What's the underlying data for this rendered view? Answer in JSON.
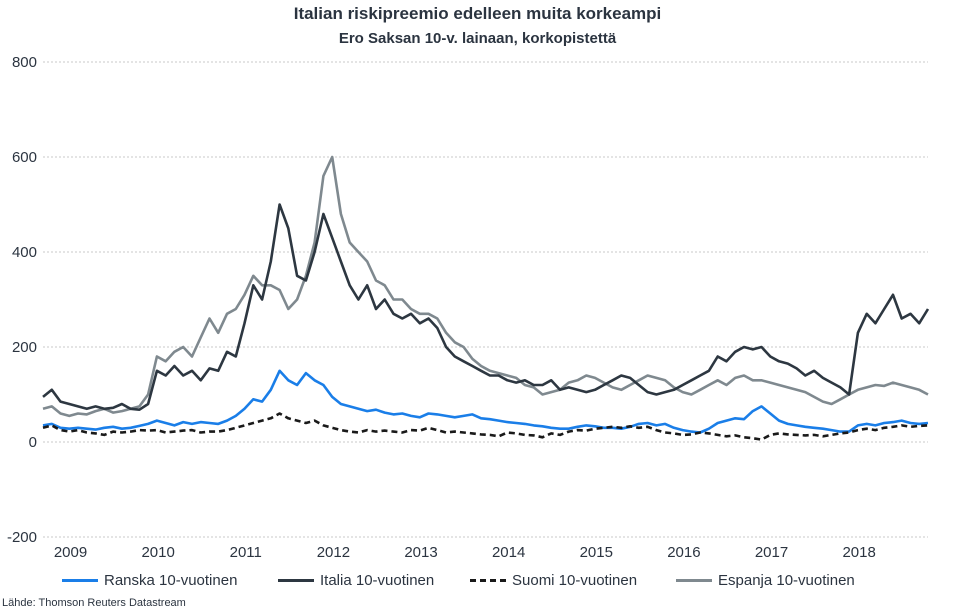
{
  "chart_data": {
    "type": "line",
    "title": "Italian riskipreemio edelleen muita korkeampi",
    "subtitle": "Ero Saksan 10-v. lainaan, korkopistettä",
    "xlabel": "",
    "ylabel": "",
    "ylim": [
      -200,
      800
    ],
    "xlim": [
      2008.8,
      2018.9
    ],
    "yticks": [
      "800",
      "600",
      "400",
      "200",
      "0",
      "-200"
    ],
    "ytick_values": [
      800,
      600,
      400,
      200,
      0,
      -200
    ],
    "xticks": [
      "2009",
      "2010",
      "2011",
      "2012",
      "2013",
      "2014",
      "2015",
      "2016",
      "2017",
      "2018"
    ],
    "xtick_values": [
      2009,
      2010,
      2011,
      2012,
      2013,
      2014,
      2015,
      2016,
      2017,
      2018
    ],
    "grid": true,
    "legend_position": "bottom",
    "source": "Lähde: Thomson Reuters Datastream",
    "x": [
      2008.8,
      2008.9,
      2009.0,
      2009.1,
      2009.2,
      2009.3,
      2009.4,
      2009.5,
      2009.6,
      2009.7,
      2009.8,
      2009.9,
      2010.0,
      2010.1,
      2010.2,
      2010.3,
      2010.4,
      2010.5,
      2010.6,
      2010.7,
      2010.8,
      2010.9,
      2011.0,
      2011.1,
      2011.2,
      2011.3,
      2011.4,
      2011.5,
      2011.6,
      2011.7,
      2011.8,
      2011.9,
      2012.0,
      2012.1,
      2012.2,
      2012.3,
      2012.4,
      2012.5,
      2012.6,
      2012.7,
      2012.8,
      2012.9,
      2013.0,
      2013.1,
      2013.2,
      2013.3,
      2013.4,
      2013.5,
      2013.6,
      2013.7,
      2013.8,
      2013.9,
      2014.0,
      2014.1,
      2014.2,
      2014.3,
      2014.4,
      2014.5,
      2014.6,
      2014.7,
      2014.8,
      2014.9,
      2015.0,
      2015.1,
      2015.2,
      2015.3,
      2015.4,
      2015.5,
      2015.6,
      2015.7,
      2015.8,
      2015.9,
      2016.0,
      2016.1,
      2016.2,
      2016.3,
      2016.4,
      2016.5,
      2016.6,
      2016.7,
      2016.8,
      2016.9,
      2017.0,
      2017.1,
      2017.2,
      2017.3,
      2017.4,
      2017.5,
      2017.6,
      2017.7,
      2017.8,
      2017.9,
      2018.0,
      2018.1,
      2018.2,
      2018.3,
      2018.4,
      2018.5,
      2018.6,
      2018.7,
      2018.8,
      2018.9
    ],
    "series": [
      {
        "name": "Ranska 10-vuotinen",
        "color": "#1a7ee8",
        "dashed": false,
        "values": [
          35,
          38,
          30,
          28,
          30,
          28,
          26,
          30,
          32,
          28,
          30,
          34,
          38,
          45,
          40,
          35,
          42,
          38,
          42,
          40,
          38,
          45,
          55,
          70,
          90,
          85,
          110,
          150,
          130,
          120,
          145,
          130,
          120,
          95,
          80,
          75,
          70,
          65,
          68,
          62,
          58,
          60,
          55,
          52,
          60,
          58,
          55,
          52,
          55,
          58,
          50,
          48,
          45,
          42,
          40,
          38,
          35,
          33,
          30,
          28,
          28,
          32,
          35,
          33,
          30,
          30,
          28,
          32,
          38,
          40,
          35,
          38,
          30,
          25,
          22,
          20,
          28,
          40,
          45,
          50,
          48,
          65,
          75,
          60,
          45,
          38,
          35,
          32,
          30,
          28,
          25,
          22,
          22,
          35,
          38,
          35,
          40,
          42,
          45,
          40,
          38,
          40
        ]
      },
      {
        "name": "Italia 10-vuotinen",
        "color": "#2d3741",
        "dashed": false,
        "values": [
          95,
          110,
          85,
          80,
          75,
          70,
          75,
          70,
          72,
          80,
          70,
          68,
          80,
          150,
          140,
          160,
          140,
          150,
          130,
          155,
          150,
          190,
          180,
          250,
          330,
          300,
          380,
          500,
          450,
          350,
          340,
          400,
          480,
          430,
          380,
          330,
          300,
          330,
          280,
          300,
          270,
          260,
          270,
          250,
          260,
          240,
          200,
          180,
          170,
          160,
          150,
          140,
          140,
          130,
          125,
          130,
          120,
          120,
          130,
          110,
          115,
          110,
          105,
          110,
          120,
          130,
          140,
          135,
          120,
          105,
          100,
          105,
          110,
          120,
          130,
          140,
          150,
          180,
          170,
          190,
          200,
          195,
          200,
          180,
          170,
          165,
          155,
          140,
          150,
          135,
          125,
          115,
          100,
          230,
          270,
          250,
          280,
          310,
          260,
          270,
          250,
          280
        ]
      },
      {
        "name": "Suomi 10-vuotinen",
        "color": "#1a1a1a",
        "dashed": true,
        "values": [
          30,
          35,
          25,
          22,
          25,
          20,
          18,
          15,
          22,
          20,
          22,
          25,
          24,
          25,
          20,
          22,
          24,
          25,
          20,
          22,
          22,
          25,
          30,
          35,
          40,
          45,
          50,
          60,
          50,
          45,
          40,
          45,
          35,
          30,
          25,
          22,
          20,
          25,
          22,
          24,
          22,
          20,
          25,
          24,
          30,
          25,
          20,
          22,
          20,
          18,
          16,
          15,
          12,
          20,
          18,
          15,
          14,
          10,
          18,
          15,
          22,
          25,
          24,
          28,
          30,
          32,
          30,
          33,
          30,
          32,
          25,
          20,
          18,
          15,
          16,
          20,
          18,
          15,
          12,
          14,
          10,
          8,
          5,
          15,
          18,
          16,
          15,
          14,
          15,
          12,
          15,
          18,
          20,
          25,
          28,
          25,
          30,
          32,
          35,
          32,
          34,
          35
        ]
      },
      {
        "name": "Espanja 10-vuotinen",
        "color": "#7f898f",
        "dashed": false,
        "values": [
          70,
          75,
          60,
          55,
          60,
          58,
          65,
          70,
          62,
          65,
          70,
          75,
          100,
          180,
          170,
          190,
          200,
          180,
          220,
          260,
          230,
          270,
          280,
          310,
          350,
          330,
          330,
          320,
          280,
          300,
          350,
          420,
          560,
          600,
          480,
          420,
          400,
          380,
          340,
          330,
          300,
          300,
          280,
          270,
          270,
          260,
          230,
          210,
          200,
          175,
          160,
          150,
          145,
          140,
          135,
          120,
          115,
          100,
          105,
          110,
          125,
          130,
          140,
          135,
          125,
          115,
          110,
          120,
          130,
          140,
          135,
          130,
          115,
          105,
          100,
          110,
          120,
          130,
          120,
          135,
          140,
          130,
          130,
          125,
          120,
          115,
          110,
          105,
          95,
          85,
          80,
          90,
          100,
          110,
          115,
          120,
          118,
          125,
          120,
          115,
          110,
          100
        ]
      }
    ]
  }
}
